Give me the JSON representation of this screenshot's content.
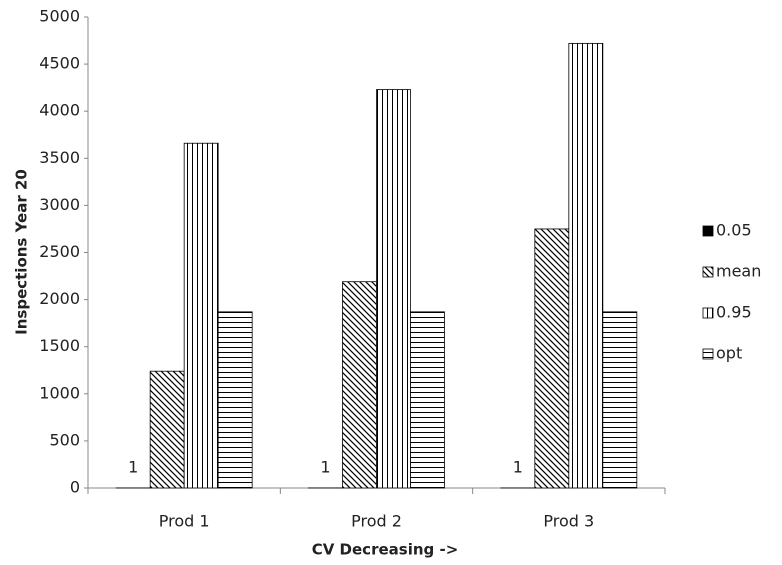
{
  "chart_data": {
    "type": "bar",
    "x_label": "CV Decreasing ->",
    "y_label": "Inspections Year 20",
    "categories": [
      "Prod 1",
      "Prod 2",
      "Prod 3"
    ],
    "series": [
      {
        "name": "0.05",
        "color": "#000000",
        "pattern": "solid",
        "values": [
          1,
          1,
          1
        ],
        "show_labels": true
      },
      {
        "name": "mean",
        "color": "#000000",
        "pattern": "diagonal",
        "values": [
          1240,
          2190,
          2750
        ]
      },
      {
        "name": "0.95",
        "color": "#000000",
        "pattern": "vertical",
        "values": [
          3660,
          4230,
          4720
        ]
      },
      {
        "name": "opt",
        "color": "#000000",
        "pattern": "horizontal",
        "values": [
          1870,
          1870,
          1870
        ]
      }
    ],
    "ylim": [
      0,
      5000
    ],
    "yticks": [
      0,
      500,
      1000,
      1500,
      2000,
      2500,
      3000,
      3500,
      4000,
      4500,
      5000
    ],
    "grid": false,
    "legend": "right"
  }
}
